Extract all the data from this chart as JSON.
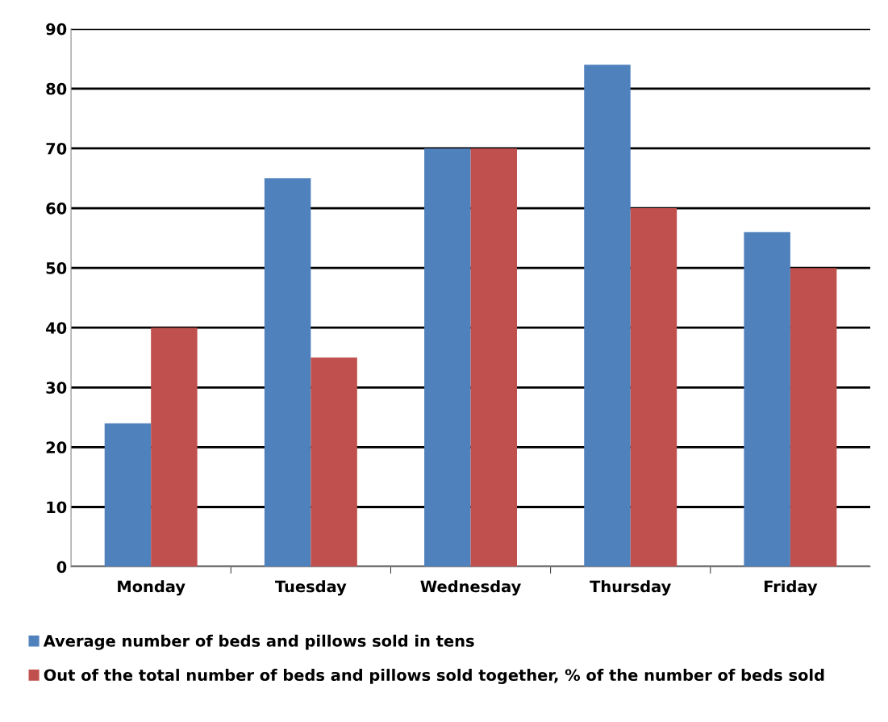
{
  "chart_data": {
    "type": "bar",
    "categories": [
      "Monday",
      "Tuesday",
      "Wednesday",
      "Thursday",
      "Friday"
    ],
    "series": [
      {
        "name": "Average number of beds and pillows sold in tens",
        "color": "#4f81bd",
        "values": [
          24,
          65,
          70,
          84,
          56
        ]
      },
      {
        "name": "Out of the total number of beds and pillows sold together, % of the number of beds sold",
        "color": "#c0504d",
        "values": [
          40,
          35,
          70,
          60,
          50
        ]
      }
    ],
    "ylim": [
      0,
      90
    ],
    "yticks": [
      0,
      10,
      20,
      30,
      40,
      50,
      60,
      70,
      80,
      90
    ],
    "grid": "y",
    "legend": "bottom"
  }
}
